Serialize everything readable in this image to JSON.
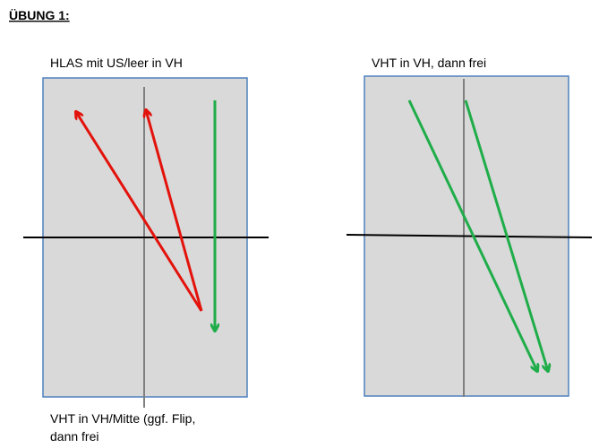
{
  "header": {
    "title": "ÜBUNG 1:"
  },
  "panels": [
    {
      "label": "HLAS mit US/leer in VH",
      "caption_lines": [
        "VHT in VH/Mitte (ggf. Flip,",
        "dann frei"
      ]
    },
    {
      "label": "VHT in VH, dann frei"
    }
  ]
}
